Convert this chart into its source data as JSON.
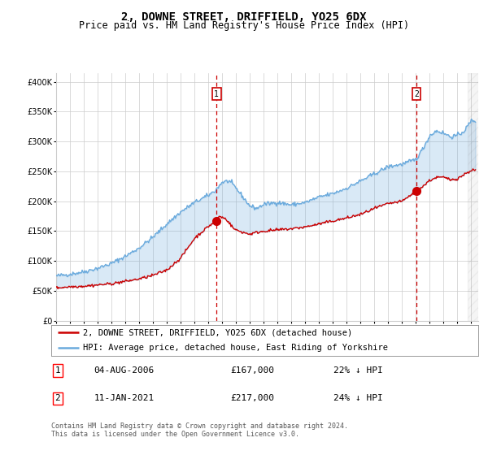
{
  "title": "2, DOWNE STREET, DRIFFIELD, YO25 6DX",
  "subtitle": "Price paid vs. HM Land Registry's House Price Index (HPI)",
  "yticks": [
    0,
    50000,
    100000,
    150000,
    200000,
    250000,
    300000,
    350000,
    400000
  ],
  "ylim": [
    0,
    415000
  ],
  "xlim_start": 1995.0,
  "xlim_end": 2025.5,
  "xtick_years": [
    1995,
    1996,
    1997,
    1998,
    1999,
    2000,
    2001,
    2002,
    2003,
    2004,
    2005,
    2006,
    2007,
    2008,
    2009,
    2010,
    2011,
    2012,
    2013,
    2014,
    2015,
    2016,
    2017,
    2018,
    2019,
    2020,
    2021,
    2022,
    2023,
    2024,
    2025
  ],
  "hpi_color": "#6aaadd",
  "price_color": "#cc0000",
  "fill_color": "#ddeeff",
  "vline_color": "#cc0000",
  "background_color": "#ffffff",
  "grid_color": "#cccccc",
  "purchase1_x": 2006.59,
  "purchase1_y": 167000,
  "purchase1_label": "1",
  "purchase2_x": 2021.03,
  "purchase2_y": 217000,
  "purchase2_label": "2",
  "legend_line1": "2, DOWNE STREET, DRIFFIELD, YO25 6DX (detached house)",
  "legend_line2": "HPI: Average price, detached house, East Riding of Yorkshire",
  "annotation1_date": "04-AUG-2006",
  "annotation1_price": "£167,000",
  "annotation1_hpi": "22% ↓ HPI",
  "annotation2_date": "11-JAN-2021",
  "annotation2_price": "£217,000",
  "annotation2_hpi": "24% ↓ HPI",
  "footer": "Contains HM Land Registry data © Crown copyright and database right 2024.\nThis data is licensed under the Open Government Licence v3.0.",
  "title_fontsize": 10,
  "subtitle_fontsize": 8.5,
  "axis_fontsize": 7,
  "legend_fontsize": 7.5,
  "annotation_fontsize": 8,
  "footer_fontsize": 6
}
